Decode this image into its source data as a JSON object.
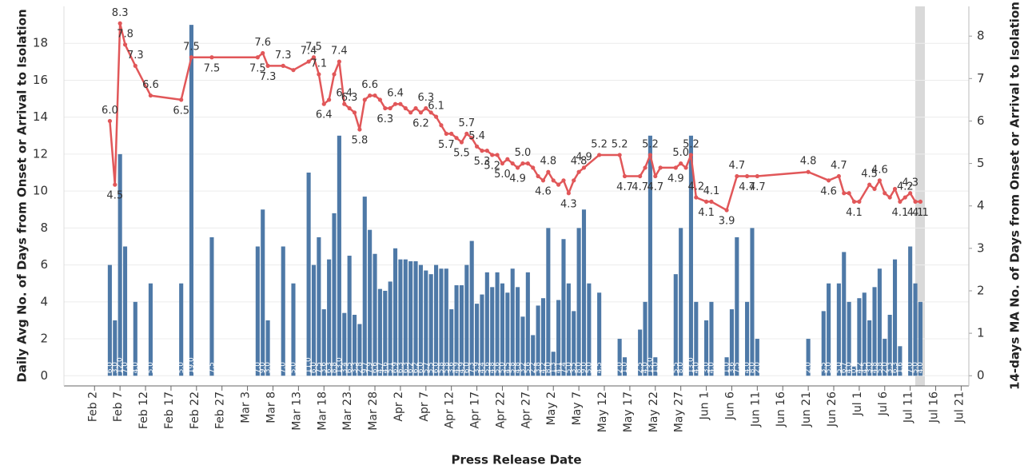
{
  "chart_data": {
    "type": "combo",
    "xlabel": "Press Release Date",
    "ylabel": "Daily Avg No. of Days from Onset or Arrival to Isolation",
    "y2label": "14-days MA No. of Days from Onset or Arrival to Isolation",
    "xlim": [
      27,
      204.5
    ],
    "xticks": [
      {
        "value": 33,
        "label": "Feb 2"
      },
      {
        "value": 38,
        "label": "Feb 7"
      },
      {
        "value": 43,
        "label": "Feb 12"
      },
      {
        "value": 48,
        "label": "Feb 17"
      },
      {
        "value": 53,
        "label": "Feb 22"
      },
      {
        "value": 58,
        "label": "Feb 27"
      },
      {
        "value": 63,
        "label": "Mar 3"
      },
      {
        "value": 68,
        "label": "Mar 8"
      },
      {
        "value": 73,
        "label": "Mar 13"
      },
      {
        "value": 78,
        "label": "Mar 18"
      },
      {
        "value": 83,
        "label": "Mar 23"
      },
      {
        "value": 88,
        "label": "Mar 28"
      },
      {
        "value": 93,
        "label": "Apr 2"
      },
      {
        "value": 98,
        "label": "Apr 7"
      },
      {
        "value": 103,
        "label": "Apr 12"
      },
      {
        "value": 108,
        "label": "Apr 17"
      },
      {
        "value": 113,
        "label": "Apr 22"
      },
      {
        "value": 118,
        "label": "Apr 27"
      },
      {
        "value": 123,
        "label": "May 2"
      },
      {
        "value": 128,
        "label": "May 7"
      },
      {
        "value": 133,
        "label": "May 12"
      },
      {
        "value": 138,
        "label": "May 17"
      },
      {
        "value": 143,
        "label": "May 22"
      },
      {
        "value": 148,
        "label": "May 27"
      },
      {
        "value": 153,
        "label": "Jun 1"
      },
      {
        "value": 158,
        "label": "Jun 6"
      },
      {
        "value": 163,
        "label": "Jun 11"
      },
      {
        "value": 168,
        "label": "Jun 16"
      },
      {
        "value": 173,
        "label": "Jun 21"
      },
      {
        "value": 178,
        "label": "Jun 26"
      },
      {
        "value": 183,
        "label": "Jul 1"
      },
      {
        "value": 188,
        "label": "Jul 6"
      },
      {
        "value": 193,
        "label": "Jul 11"
      },
      {
        "value": 198,
        "label": "Jul 16"
      },
      {
        "value": 203,
        "label": "Jul 21"
      }
    ],
    "ylim": [
      -0.55,
      20
    ],
    "yticks": [
      0,
      2,
      4,
      6,
      8,
      10,
      12,
      14,
      16,
      18
    ],
    "y2lim": [
      -0.24,
      8.7
    ],
    "y2ticks": [
      0,
      1,
      2,
      3,
      4,
      5,
      6,
      7,
      8
    ],
    "grid": true,
    "series": [
      {
        "type": "bar",
        "color": "#4e79a7",
        "x": [
          36,
          37,
          38,
          39,
          41,
          44,
          50,
          52,
          56,
          65,
          66,
          67,
          70,
          72,
          75,
          76,
          77,
          78,
          79,
          80,
          81,
          82,
          83,
          84,
          85,
          86,
          87,
          88,
          89,
          90,
          91,
          92,
          93,
          94,
          95,
          96,
          97,
          98,
          99,
          100,
          101,
          102,
          103,
          104,
          105,
          106,
          107,
          108,
          109,
          110,
          111,
          112,
          113,
          114,
          115,
          116,
          117,
          118,
          119,
          120,
          121,
          122,
          123,
          124,
          125,
          126,
          127,
          128,
          129,
          130,
          132,
          136,
          137,
          140,
          141,
          142,
          143,
          147,
          148,
          150,
          151,
          153,
          154,
          157,
          158,
          159,
          161,
          162,
          163,
          173,
          176,
          177,
          179,
          180,
          181,
          182,
          183,
          184,
          185,
          186,
          187,
          188,
          189,
          190,
          191,
          193,
          194,
          195
        ],
        "values": [
          6,
          3,
          12,
          7,
          4,
          5,
          5,
          19,
          7.5,
          7,
          9,
          3,
          7,
          5,
          11,
          6,
          7.5,
          3.6,
          6.3,
          8.8,
          13,
          3.4,
          6.5,
          3.3,
          2.8,
          9.7,
          7.9,
          6.6,
          4.7,
          4.6,
          5.1,
          6.9,
          6.3,
          6.3,
          6.2,
          6.2,
          6,
          5.7,
          5.5,
          6,
          5.8,
          5.8,
          3.6,
          4.9,
          4.9,
          6,
          7.3,
          3.9,
          4.4,
          5.6,
          4.8,
          5.6,
          5,
          4.5,
          5.8,
          4.8,
          3.2,
          5.6,
          2.2,
          3.8,
          4.2,
          8,
          1.3,
          4.1,
          7.4,
          5,
          3.5,
          8,
          9,
          5,
          4.5,
          2,
          1,
          2.5,
          4,
          13,
          1,
          5.5,
          8,
          13,
          4,
          3,
          4,
          1,
          3.6,
          7.5,
          4,
          8,
          2,
          2,
          3.5,
          5,
          5,
          6.7,
          4,
          0.5,
          4.2,
          4.5,
          3,
          4.8,
          5.8,
          2,
          3.3,
          6.3,
          1.6,
          7,
          5,
          4
        ],
        "value_labels": [
          "6.0",
          "3.0",
          "12.0",
          "7.0",
          "4.0",
          "5.0",
          "5.0",
          "19.0",
          "7.5",
          "7.0",
          "9.0",
          "3.0",
          "7.0",
          "5.0",
          "11.0",
          "6.0",
          "7.5",
          "3.6",
          "6.3",
          "8.8",
          "13.0",
          "3.4",
          "6.5",
          "3.3",
          "2.8",
          "9.7",
          "7.9",
          "6.6",
          "4.7",
          "4.6",
          "5.1",
          "6.9",
          "6.3",
          "6.3",
          "6.2",
          "6.2",
          "6.0",
          "5.7",
          "5.5",
          "6.0",
          "5.8",
          "5.8",
          "3.6",
          "4.9",
          "4.9",
          "6.0",
          "7.3",
          "3.9",
          "4.4",
          "5.6",
          "4.8",
          "5.6",
          "5.0",
          "4.5",
          "5.8",
          "4.8",
          "3.2",
          "5.6",
          "2.2",
          "3.8",
          "4.2",
          "8.0",
          "1.3",
          "4.1",
          "7.4",
          "5.0",
          "3.5",
          "8.0",
          "9.0",
          "5.0",
          "4.5",
          "2.0",
          "1.0",
          "2.5",
          "4.0",
          "13.0",
          "1.0",
          "5.5",
          "8.0",
          "13.0",
          "4.0",
          "3.0",
          "4.0",
          "1.0",
          "3.6",
          "7.5",
          "4.0",
          "8.0",
          "2.0",
          "2.0",
          "3.5",
          "5.0",
          "5.0",
          "6.7",
          "4.0",
          "0.5",
          "4.2",
          "4.5",
          "3.0",
          "4.8",
          "5.8",
          "2.0",
          "3.3",
          "6.3",
          "1.6",
          "7.0",
          "5.0",
          "4.0"
        ]
      },
      {
        "type": "line",
        "axis": "y2",
        "color": "#e15759",
        "x": [
          36,
          37,
          38,
          39,
          41,
          44,
          50,
          52,
          56,
          65,
          66,
          67,
          70,
          72,
          75,
          76,
          77,
          78,
          79,
          80,
          81,
          82,
          83,
          84,
          85,
          86,
          87,
          88,
          89,
          90,
          91,
          92,
          93,
          94,
          95,
          96,
          97,
          98,
          99,
          100,
          101,
          102,
          103,
          104,
          105,
          106,
          107,
          108,
          109,
          110,
          111,
          112,
          113,
          114,
          115,
          116,
          117,
          118,
          119,
          120,
          121,
          122,
          123,
          124,
          125,
          126,
          127,
          128,
          129,
          132,
          136,
          137,
          140,
          141,
          142,
          143,
          144,
          147,
          148,
          149,
          150,
          151,
          153,
          154,
          157,
          159,
          161,
          163,
          173,
          177,
          179,
          180,
          181,
          182,
          183,
          185,
          186,
          187,
          188,
          189,
          190,
          191,
          192,
          193,
          194,
          195
        ],
        "values": [
          6.0,
          4.5,
          8.3,
          7.8,
          7.3,
          6.6,
          6.5,
          7.5,
          7.5,
          7.5,
          7.6,
          7.3,
          7.3,
          7.2,
          7.4,
          7.5,
          7.1,
          6.4,
          6.5,
          7.1,
          7.4,
          6.4,
          6.3,
          6.2,
          5.8,
          6.5,
          6.6,
          6.6,
          6.5,
          6.3,
          6.3,
          6.4,
          6.4,
          6.3,
          6.2,
          6.3,
          6.2,
          6.3,
          6.2,
          6.1,
          5.9,
          5.7,
          5.7,
          5.6,
          5.5,
          5.7,
          5.6,
          5.4,
          5.3,
          5.3,
          5.2,
          5.2,
          5.0,
          5.1,
          5.0,
          4.9,
          5.0,
          5.0,
          4.9,
          4.7,
          4.6,
          4.8,
          4.6,
          4.5,
          4.6,
          4.3,
          4.6,
          4.8,
          4.9,
          5.2,
          5.2,
          4.7,
          4.7,
          4.9,
          5.2,
          4.7,
          4.9,
          4.9,
          5.0,
          4.9,
          5.2,
          4.2,
          4.1,
          4.1,
          3.9,
          4.7,
          4.7,
          4.7,
          4.8,
          4.6,
          4.7,
          4.3,
          4.3,
          4.1,
          4.1,
          4.5,
          4.4,
          4.6,
          4.3,
          4.2,
          4.4,
          4.1,
          4.2,
          4.3,
          4.1,
          4.1
        ],
        "value_labels": [
          "6.0",
          "4.5",
          "8.3",
          "7.8",
          "7.3",
          "6.6",
          "6.5",
          "7.5",
          "7.5",
          "7.5",
          "7.6",
          "7.3",
          "7.3",
          null,
          "7.4",
          "7.5",
          "7.1",
          "6.4",
          null,
          null,
          "7.4",
          "6.4",
          "6.3",
          null,
          "5.8",
          null,
          "6.6",
          null,
          null,
          "6.3",
          null,
          "6.4",
          null,
          null,
          null,
          null,
          "6.2",
          "6.3",
          null,
          "6.1",
          null,
          "5.7",
          null,
          null,
          "5.5",
          "5.7",
          null,
          "5.4",
          "5.3",
          null,
          "5.2",
          null,
          "5.0",
          null,
          null,
          "4.9",
          "5.0",
          null,
          null,
          null,
          "4.6",
          "4.8",
          null,
          null,
          null,
          "4.3",
          null,
          "4.8",
          "4.9",
          "5.2",
          "5.2",
          "4.7",
          "4.7",
          null,
          "5.2",
          "4.7",
          null,
          "4.9",
          "5.0",
          null,
          "5.2",
          "4.2",
          "4.1",
          "4.1",
          "3.9",
          "4.7",
          "4.7",
          "4.7",
          "4.8",
          "4.6",
          "4.7",
          null,
          null,
          "4.1",
          null,
          "4.5",
          null,
          "4.6",
          null,
          null,
          null,
          "4.1",
          "4.2",
          "4.3",
          "4.1",
          "4.1"
        ]
      }
    ]
  }
}
